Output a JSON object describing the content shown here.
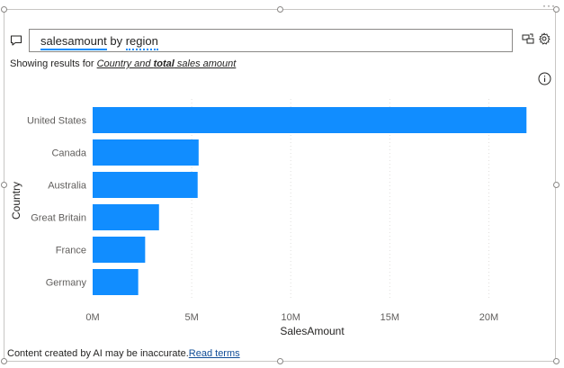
{
  "qa": {
    "query_word1": "salesamount",
    "query_word2": "by",
    "query_word3": "region"
  },
  "showing": {
    "prefix": "Showing results for ",
    "link_part1": "Country and ",
    "link_bold": "total",
    "link_part2": " sales amount"
  },
  "footer": {
    "text": "Content created by AI may be inaccurate.",
    "link": "Read terms"
  },
  "icons": {
    "qa": "speech-bubble-icon",
    "convert": "convert-visual-icon",
    "settings": "gear-icon",
    "info": "info-icon",
    "more": "more-options-icon"
  },
  "chart_data": {
    "type": "bar",
    "orientation": "horizontal",
    "categories": [
      "United States",
      "Canada",
      "Australia",
      "Great Britain",
      "France",
      "Germany"
    ],
    "values": [
      21900000,
      5350000,
      5300000,
      3350000,
      2650000,
      2300000
    ],
    "xlabel": "SalesAmount",
    "ylabel": "Country",
    "xticks": [
      "0M",
      "5M",
      "10M",
      "15M",
      "20M"
    ],
    "xlim": [
      0,
      22000000
    ],
    "bar_color": "#118dff",
    "grid": true
  }
}
